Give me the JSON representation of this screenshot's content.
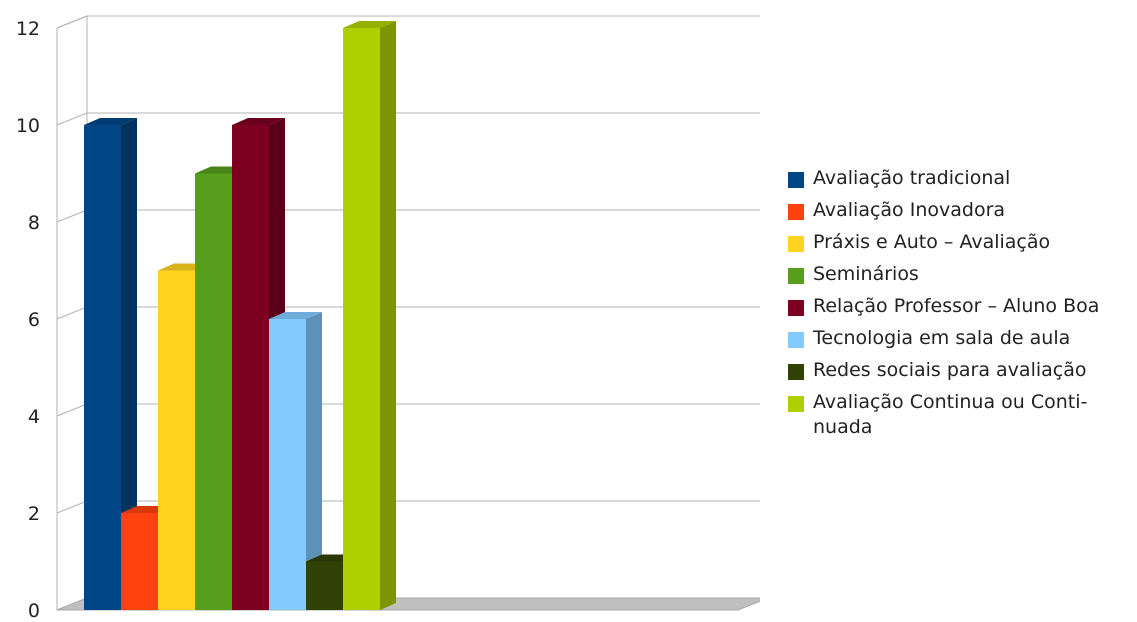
{
  "chart_data": {
    "type": "bar",
    "title": "",
    "xlabel": "",
    "ylabel": "",
    "ylim": [
      0,
      12
    ],
    "yticks": [
      "0",
      "2",
      "4",
      "6",
      "8",
      "10",
      "12"
    ],
    "grid": true,
    "legend_position": "right",
    "series": [
      {
        "name": "Avaliação tradicional",
        "value": 10,
        "color": "#004586"
      },
      {
        "name": "Avaliação Inovadora",
        "value": 2,
        "color": "#ff420e"
      },
      {
        "name": "Práxis e Auto – Avaliação",
        "value": 7,
        "color": "#ffd320"
      },
      {
        "name": "Seminários",
        "value": 9,
        "color": "#579d1c"
      },
      {
        "name": "Relação Professor – Aluno Boa",
        "value": 10,
        "color": "#7e0021"
      },
      {
        "name": "Tecnologia em sala de aula",
        "value": 6,
        "color": "#83caff"
      },
      {
        "name": "Redes sociais para avaliação",
        "value": 1,
        "color": "#314004"
      },
      {
        "name": "Avaliação Continua ou Conti-nuada",
        "value": 12,
        "color": "#aecf00"
      }
    ]
  }
}
